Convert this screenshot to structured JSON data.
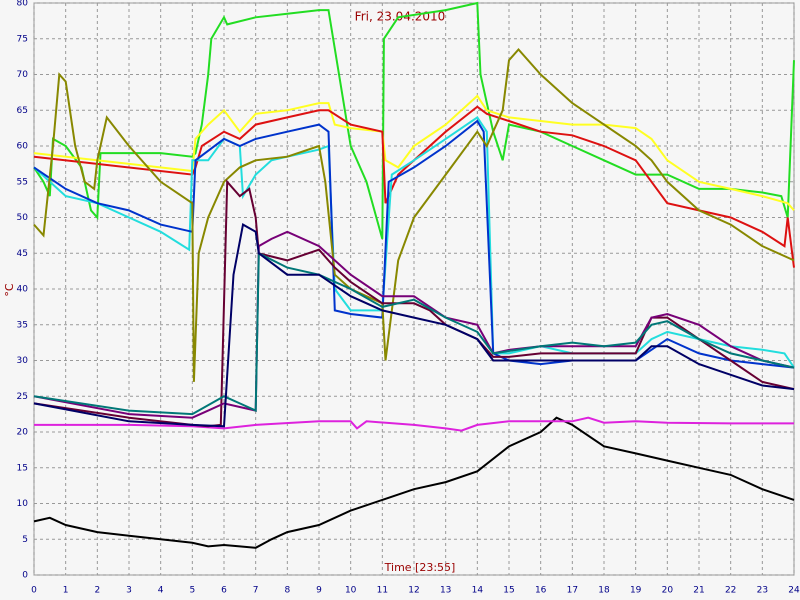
{
  "chart_data": {
    "type": "line",
    "title": "Fri, 23.04.2010",
    "y_label": "°C",
    "x_label": "Time [23:55]",
    "xlim": [
      0,
      24
    ],
    "ylim": [
      0,
      80
    ],
    "grid": true,
    "xticks": [
      0,
      1,
      2,
      3,
      4,
      5,
      6,
      7,
      8,
      9,
      10,
      11,
      12,
      13,
      14,
      15,
      16,
      17,
      18,
      19,
      20,
      21,
      22,
      23,
      24
    ],
    "yticks": [
      0,
      5,
      10,
      15,
      20,
      25,
      30,
      35,
      40,
      45,
      50,
      55,
      60,
      65,
      70,
      75,
      80
    ],
    "series": [
      {
        "color": "#000000",
        "x": [
          0,
          0.5,
          1,
          2,
          3,
          4,
          5,
          5.5,
          6,
          6.5,
          7,
          7.5,
          8,
          9,
          10,
          11,
          12,
          13,
          14,
          15,
          16,
          16.5,
          17,
          18,
          19,
          20,
          21,
          22,
          23,
          24
        ],
        "values": [
          7.5,
          8,
          7,
          6,
          5.5,
          5,
          4.5,
          4,
          4.2,
          4,
          3.8,
          5,
          6,
          7,
          9,
          10.5,
          12,
          13,
          14.5,
          18,
          20,
          22,
          21,
          18,
          17,
          16,
          15,
          14,
          12,
          10.5
        ]
      },
      {
        "color": "#dd22dd",
        "x": [
          0,
          3,
          5,
          6,
          7,
          9,
          10,
          10.2,
          10.5,
          12,
          13,
          13.5,
          14,
          15,
          17,
          17.5,
          18,
          19,
          20,
          22,
          24
        ],
        "values": [
          21,
          21,
          20.8,
          20.5,
          21,
          21.5,
          21.5,
          20.5,
          21.5,
          21,
          20.5,
          20.2,
          21,
          21.5,
          21.5,
          22,
          21.3,
          21.5,
          21.3,
          21.2,
          21.2
        ]
      },
      {
        "color": "#22dd22",
        "x": [
          0,
          0.3,
          0.5,
          0.6,
          1,
          1.5,
          1.8,
          2,
          2.1,
          3,
          4,
          5,
          5.1,
          5.3,
          5.5,
          5.6,
          6,
          6.1,
          7,
          8,
          9,
          9.3,
          10,
          10.5,
          11,
          11.05,
          11.5,
          13,
          14,
          14.1,
          14.5,
          14.8,
          15,
          16,
          17,
          18,
          19,
          20,
          21,
          22,
          23,
          23.6,
          23.8,
          24
        ],
        "values": [
          57,
          55,
          53,
          61,
          60,
          57,
          51,
          50,
          59,
          59,
          59,
          58.5,
          59,
          63,
          70,
          75,
          78,
          77,
          78,
          78.5,
          79,
          79,
          60,
          55,
          47,
          75,
          78,
          79,
          80,
          70,
          62,
          58,
          63,
          62,
          60,
          58,
          56,
          56,
          54,
          54,
          53.5,
          53,
          50,
          72
        ]
      },
      {
        "color": "#ffff22",
        "x": [
          0,
          5,
          5.1,
          5.5,
          6,
          6.5,
          7,
          8,
          9,
          9.3,
          9.5,
          10,
          11,
          11.1,
          11.5,
          12,
          13,
          14,
          14.3,
          15,
          16,
          17,
          18,
          19,
          19.5,
          20,
          21,
          22,
          23,
          23.8,
          24
        ],
        "values": [
          59,
          56.5,
          61,
          63,
          65,
          62,
          64.5,
          65,
          66,
          66,
          63,
          62.5,
          62,
          58,
          57,
          60,
          63,
          67,
          65,
          64,
          63.5,
          63,
          63,
          62.5,
          61,
          58,
          55,
          54,
          53,
          52,
          51
        ]
      },
      {
        "color": "#dd1111",
        "x": [
          0,
          5,
          5.1,
          5.3,
          6,
          6.5,
          7,
          8,
          9,
          9.3,
          10,
          11,
          11.1,
          11.5,
          12,
          13,
          14,
          14.3,
          15,
          16,
          17,
          18,
          19,
          19.5,
          20,
          21,
          22,
          23,
          23.7,
          23.8,
          24
        ],
        "values": [
          58.5,
          56,
          57,
          60,
          62,
          61,
          63,
          64,
          65,
          65,
          63,
          62,
          52,
          56,
          58,
          62,
          65.5,
          64.5,
          63.5,
          62,
          61.5,
          60,
          58,
          55,
          52,
          51,
          50,
          48,
          46,
          50,
          43
        ]
      },
      {
        "color": "#22dddd",
        "x": [
          0,
          1,
          2,
          3,
          4,
          4.9,
          5,
          5.5,
          6,
          6.5,
          6.6,
          7,
          7.5,
          8,
          9,
          9.3,
          9.5,
          10,
          11,
          11.3,
          12,
          13,
          14,
          14.3,
          14.5,
          15,
          16,
          17,
          18,
          19,
          19.5,
          20,
          21,
          22,
          23,
          23.7,
          24
        ],
        "values": [
          57,
          53,
          52,
          50,
          48,
          45.5,
          58,
          58,
          61,
          60,
          53,
          56,
          58,
          58.5,
          59.5,
          60,
          40,
          37,
          37,
          56,
          58,
          61,
          64,
          62,
          31,
          31,
          32,
          31,
          31,
          31,
          33,
          34,
          33,
          32,
          31.5,
          31,
          29
        ]
      },
      {
        "color": "#0033cc",
        "x": [
          0,
          1,
          2,
          3,
          4,
          5,
          5.1,
          6,
          6.5,
          7,
          8,
          9,
          9.3,
          9.5,
          10,
          11,
          11.2,
          12,
          13,
          14,
          14.2,
          14.5,
          15,
          16,
          17,
          18,
          19,
          20,
          21,
          22,
          23,
          24
        ],
        "values": [
          57,
          54,
          52,
          51,
          49,
          48,
          58,
          61,
          60,
          61,
          62,
          63,
          62,
          37,
          36.5,
          36,
          55,
          57,
          60,
          63.5,
          62,
          31,
          30,
          29.5,
          30,
          30,
          30,
          33,
          31,
          30,
          29.5,
          29
        ]
      },
      {
        "color": "#888800",
        "x": [
          0,
          0.3,
          0.6,
          0.8,
          1,
          1.3,
          1.6,
          1.9,
          2,
          2.3,
          3,
          4,
          5,
          5.05,
          5.2,
          5.5,
          6,
          6.5,
          7,
          8,
          9,
          9.2,
          9.5,
          10,
          11,
          11.1,
          11.5,
          12,
          13,
          14,
          14.3,
          14.8,
          15,
          15.3,
          16,
          17,
          18,
          19,
          19.5,
          20,
          21,
          22,
          23,
          24
        ],
        "values": [
          49,
          47.5,
          60,
          70,
          69,
          60,
          55,
          54,
          58,
          64,
          60,
          55,
          52,
          27,
          45,
          50,
          55,
          57,
          58,
          58.5,
          60,
          55,
          42,
          40,
          38,
          30,
          44,
          50,
          56,
          62,
          60,
          65,
          72,
          73.5,
          70,
          66,
          63,
          60,
          58,
          55,
          51,
          49,
          46,
          44
        ]
      },
      {
        "color": "#660033",
        "x": [
          0,
          3,
          5,
          5.5,
          5.9,
          6.1,
          6.5,
          6.8,
          7,
          7.1,
          8,
          9,
          9.5,
          10,
          11,
          12,
          12.5,
          13,
          13.5,
          14,
          14.5,
          15,
          16,
          17,
          18,
          19,
          19.5,
          20,
          21,
          22,
          23,
          24
        ],
        "values": [
          24,
          22,
          21,
          20.8,
          21,
          55,
          53,
          54,
          50,
          45,
          44,
          45.5,
          43,
          41,
          38,
          38,
          37,
          35,
          34,
          33,
          30.5,
          30.5,
          31,
          31,
          31,
          31,
          36,
          36,
          33,
          30,
          27,
          26
        ]
      },
      {
        "color": "#770077",
        "x": [
          0,
          3,
          5,
          5.5,
          6,
          6.5,
          7,
          7.1,
          7.5,
          8,
          9,
          10,
          11,
          12,
          13,
          14,
          14.5,
          15,
          16,
          17,
          18,
          19,
          19.5,
          20,
          21,
          22,
          23,
          24
        ],
        "values": [
          25,
          22.5,
          22,
          23,
          24,
          23.5,
          23,
          46,
          47,
          48,
          46,
          42,
          39,
          39,
          36,
          35,
          31,
          31.5,
          32,
          32,
          32,
          32,
          36,
          36.5,
          35,
          32,
          30,
          29
        ]
      },
      {
        "color": "#007777",
        "x": [
          0,
          3,
          5,
          6,
          6.5,
          7,
          7.1,
          8,
          9,
          10,
          11,
          12,
          13,
          14,
          14.5,
          16,
          17,
          18,
          19,
          19.5,
          20,
          21,
          22,
          23,
          24
        ],
        "values": [
          25,
          23,
          22.5,
          25,
          24,
          23,
          45,
          43,
          42,
          40,
          37.5,
          38.5,
          36,
          34,
          31,
          32,
          32.5,
          32,
          32.5,
          35,
          35.5,
          33,
          31,
          30,
          29
        ]
      },
      {
        "color": "#000066",
        "x": [
          0,
          3,
          5,
          6,
          6.3,
          6.6,
          7,
          7.1,
          8,
          9,
          10,
          11,
          12,
          13,
          14,
          14.5,
          16,
          17,
          18,
          19,
          19.5,
          20,
          21,
          22,
          23,
          24
        ],
        "values": [
          24,
          21.5,
          21,
          20.8,
          42,
          49,
          48,
          45,
          42,
          42,
          39,
          37,
          36,
          35,
          33,
          30,
          30,
          30,
          30,
          30,
          32,
          32,
          29.5,
          28,
          26.5,
          26
        ]
      }
    ]
  }
}
